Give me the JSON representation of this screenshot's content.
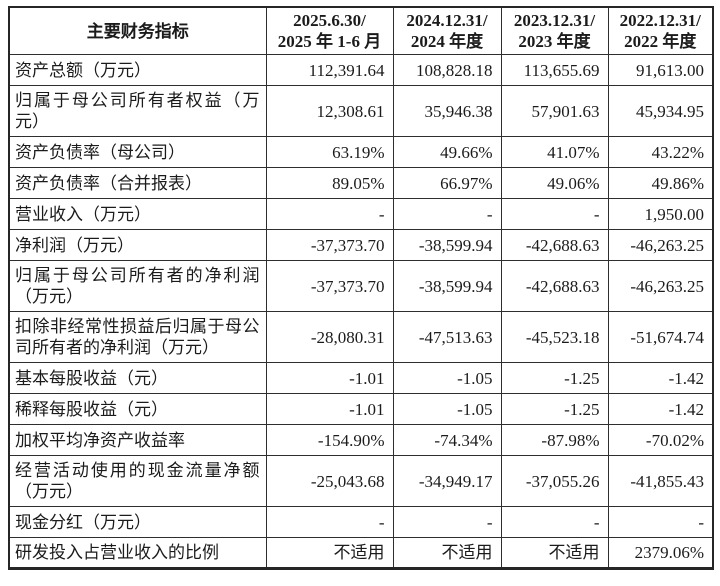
{
  "page": {
    "background_color": "#ffffff",
    "text_color": "#1b1b1b",
    "border_color": "#2e2e2e"
  },
  "table": {
    "header": {
      "indicator_label": "主要财务指标",
      "periods": [
        {
          "line1": "2025.6.30/",
          "line2": "2025 年 1-6 月"
        },
        {
          "line1": "2024.12.31/",
          "line2": "2024 年度"
        },
        {
          "line1": "2023.12.31/",
          "line2": "2023 年度"
        },
        {
          "line1": "2022.12.31/",
          "line2": "2022 年度"
        }
      ]
    },
    "rows": [
      {
        "label": "资产总额（万元）",
        "values": [
          "112,391.64",
          "108,828.18",
          "113,655.69",
          "91,613.00"
        ]
      },
      {
        "label": "归属于母公司所有者权益（万元）",
        "values": [
          "12,308.61",
          "35,946.38",
          "57,901.63",
          "45,934.95"
        ]
      },
      {
        "label": "资产负债率（母公司）",
        "values": [
          "63.19%",
          "49.66%",
          "41.07%",
          "43.22%"
        ]
      },
      {
        "label": "资产负债率（合并报表）",
        "values": [
          "89.05%",
          "66.97%",
          "49.06%",
          "49.86%"
        ]
      },
      {
        "label": "营业收入（万元）",
        "values": [
          "-",
          "-",
          "-",
          "1,950.00"
        ]
      },
      {
        "label": "净利润（万元）",
        "values": [
          "-37,373.70",
          "-38,599.94",
          "-42,688.63",
          "-46,263.25"
        ]
      },
      {
        "label": "归属于母公司所有者的净利润（万元）",
        "values": [
          "-37,373.70",
          "-38,599.94",
          "-42,688.63",
          "-46,263.25"
        ]
      },
      {
        "label": "扣除非经常性损益后归属于母公司所有者的净利润（万元）",
        "values": [
          "-28,080.31",
          "-47,513.63",
          "-45,523.18",
          "-51,674.74"
        ]
      },
      {
        "label": "基本每股收益（元）",
        "values": [
          "-1.01",
          "-1.05",
          "-1.25",
          "-1.42"
        ]
      },
      {
        "label": "稀释每股收益（元）",
        "values": [
          "-1.01",
          "-1.05",
          "-1.25",
          "-1.42"
        ]
      },
      {
        "label": "加权平均净资产收益率",
        "values": [
          "-154.90%",
          "-74.34%",
          "-87.98%",
          "-70.02%"
        ]
      },
      {
        "label": "经营活动使用的现金流量净额（万元）",
        "values": [
          "-25,043.68",
          "-34,949.17",
          "-37,055.26",
          "-41,855.43"
        ]
      },
      {
        "label": "现金分红（万元）",
        "values": [
          "-",
          "-",
          "-",
          "-"
        ]
      },
      {
        "label": "研发投入占营业收入的比例",
        "values": [
          "不适用",
          "不适用",
          "不适用",
          "2379.06%"
        ]
      }
    ]
  }
}
